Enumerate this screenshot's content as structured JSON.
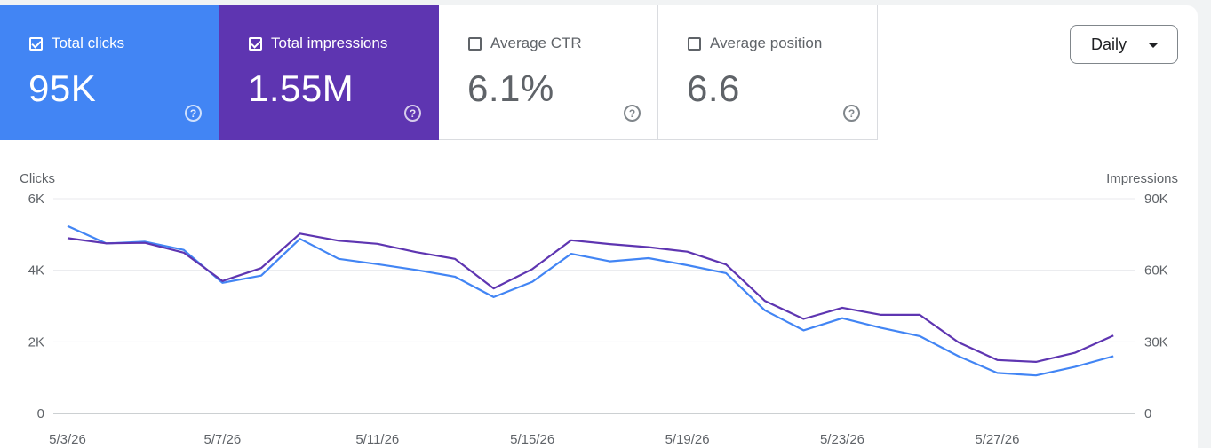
{
  "metrics": [
    {
      "label": "Total clicks",
      "value": "95K",
      "checked": true,
      "color": "#4285f4"
    },
    {
      "label": "Total impressions",
      "value": "1.55M",
      "checked": true,
      "color": "#5e35b1"
    },
    {
      "label": "Average CTR",
      "value": "6.1%",
      "checked": false
    },
    {
      "label": "Average position",
      "value": "6.6",
      "checked": false
    }
  ],
  "help_icon": "question-circle-icon",
  "period_dropdown": {
    "label": "Daily",
    "icon": "caret-down-icon"
  },
  "chart_data": {
    "type": "line",
    "left_axis_label": "Clicks",
    "right_axis_label": "Impressions",
    "left_ticks": [
      "6K",
      "4K",
      "2K",
      "0"
    ],
    "right_ticks": [
      "90K",
      "60K",
      "30K",
      "0"
    ],
    "ylim_left": [
      0,
      6000
    ],
    "ylim_right": [
      0,
      90000
    ],
    "x_labels": [
      "5/3/26",
      "5/7/26",
      "5/11/26",
      "5/15/26",
      "5/19/26",
      "5/23/26",
      "5/27/26"
    ],
    "x": [
      "5/3/26",
      "5/4/26",
      "5/5/26",
      "5/6/26",
      "5/7/26",
      "5/8/26",
      "5/9/26",
      "5/10/26",
      "5/11/26",
      "5/12/26",
      "5/13/26",
      "5/14/26",
      "5/15/26",
      "5/16/26",
      "5/17/26",
      "5/18/26",
      "5/19/26",
      "5/20/26",
      "5/21/26",
      "5/22/26",
      "5/23/26",
      "5/24/26",
      "5/25/26",
      "5/26/26",
      "5/27/26",
      "5/28/26",
      "5/29/26",
      "5/30/26"
    ],
    "grid": true,
    "series": [
      {
        "name": "Total clicks",
        "axis": "left",
        "color": "#4285f4",
        "values": [
          5240,
          4750,
          4800,
          4570,
          3650,
          3850,
          4880,
          4320,
          4170,
          4010,
          3820,
          3250,
          3680,
          4460,
          4250,
          4340,
          4140,
          3920,
          2880,
          2320,
          2660,
          2390,
          2160,
          1600,
          1130,
          1060,
          1300,
          1600
        ]
      },
      {
        "name": "Total impressions",
        "axis": "right",
        "color": "#5e35b1",
        "values": [
          73500,
          71300,
          71500,
          67400,
          55500,
          60900,
          75400,
          72400,
          71100,
          67600,
          64800,
          52400,
          60500,
          72600,
          71000,
          69700,
          67800,
          62400,
          47200,
          39600,
          44300,
          41300,
          41300,
          29800,
          22400,
          21600,
          25400,
          32600
        ]
      }
    ]
  }
}
